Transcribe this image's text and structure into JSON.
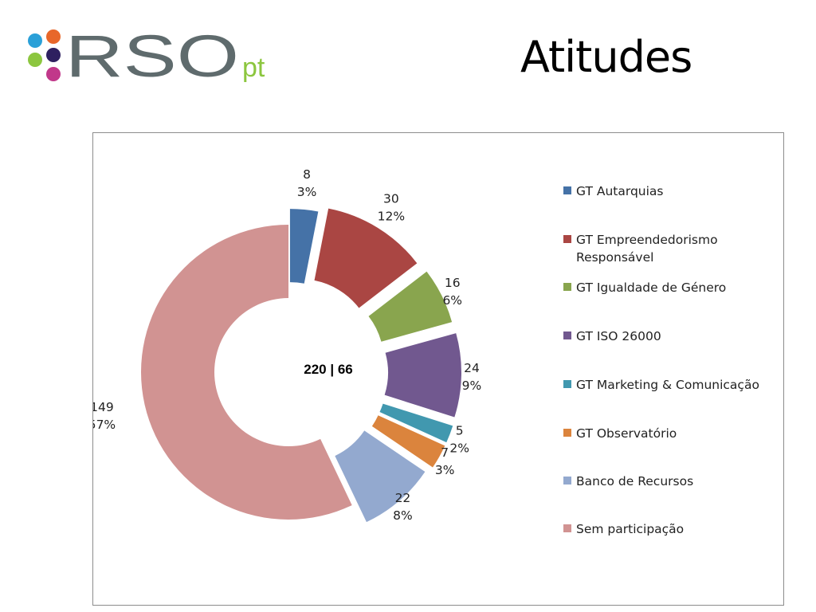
{
  "header": {
    "title": "Atitudes",
    "logo": {
      "text_main": "RSO",
      "text_suffix": "pt",
      "dot_colors": [
        "#2aa0d8",
        "#e8672a",
        "#8cc63f",
        "#2e2060",
        "#c1388a"
      ],
      "text_color": "#5f6b6d",
      "suffix_color": "#8cc63f"
    }
  },
  "chart_data": {
    "type": "pie",
    "variant": "exploded-donut",
    "center_label": "220  |  66",
    "legend_position": "right",
    "slices": [
      {
        "label": "GT Autarquias",
        "value": 8,
        "percent": "3%",
        "color": "#4572a7"
      },
      {
        "label": "GT Empreendedorismo\nResponsável",
        "value": 30,
        "percent": "12%",
        "color": "#aa4643"
      },
      {
        "label": "GT Igualdade de Género",
        "value": 16,
        "percent": "6%",
        "color": "#89a54e"
      },
      {
        "label": "GT ISO 26000",
        "value": 24,
        "percent": "9%",
        "color": "#71588f"
      },
      {
        "label": "GT Marketing & Comunicação",
        "value": 5,
        "percent": "2%",
        "color": "#4198af"
      },
      {
        "label": "GT Observatório",
        "value": 7,
        "percent": "3%",
        "color": "#db843d"
      },
      {
        "label": "Banco de Recursos",
        "value": 22,
        "percent": "8%",
        "color": "#93a9cf"
      },
      {
        "label": "Sem participação",
        "value": 149,
        "percent": "57%",
        "color": "#d19392"
      }
    ]
  }
}
